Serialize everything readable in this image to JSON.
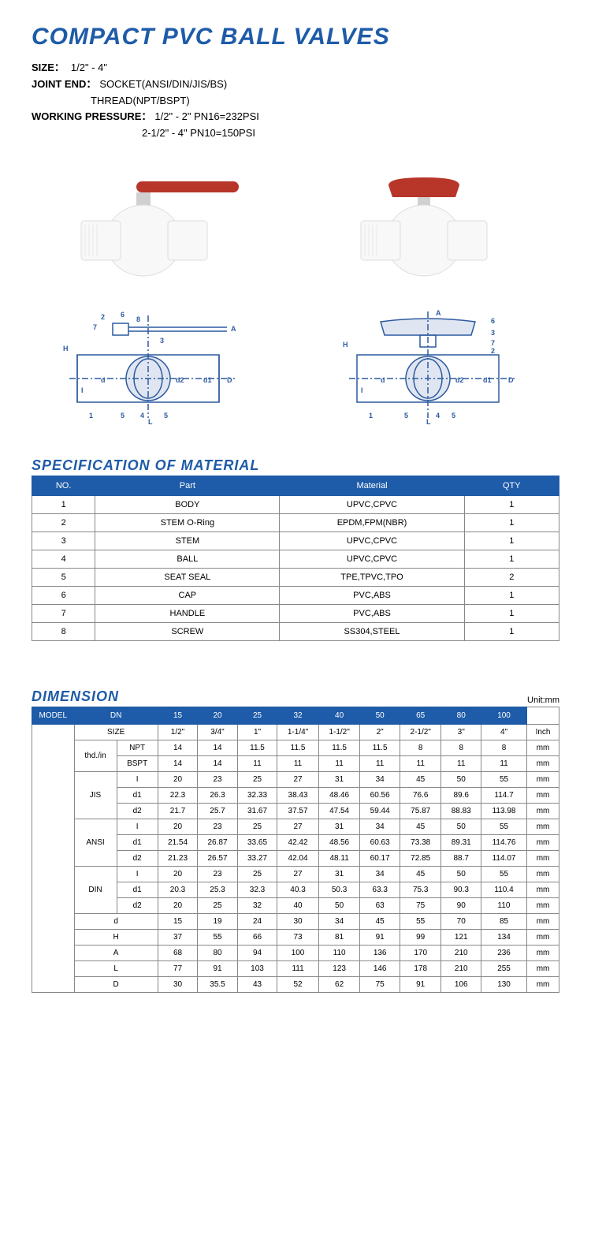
{
  "title": "COMPACT PVC BALL VALVES",
  "specs": {
    "size_label": "SIZE：",
    "size_value": "1/2\" - 4\"",
    "joint_label": "JOINT END：",
    "joint_value1": "SOCKET(ANSI/DIN/JIS/BS)",
    "joint_value2": "THREAD(NPT/BSPT)",
    "pressure_label": "WORKING PRESSURE：",
    "pressure_value1": "1/2\" - 2\"    PN16=232PSI",
    "pressure_value2": "2-1/2\" - 4\"   PN10=150PSI"
  },
  "colors": {
    "primary": "#1e5ba8",
    "handle": "#c0392b",
    "body": "#f5f5f5",
    "diagram": "#2c5aa0"
  },
  "material": {
    "title": "SPECIFICATION OF MATERIAL",
    "headers": [
      "NO.",
      "Part",
      "Material",
      "QTY"
    ],
    "rows": [
      [
        "1",
        "BODY",
        "UPVC,CPVC",
        "1"
      ],
      [
        "2",
        "STEM O-Ring",
        "EPDM,FPM(NBR)",
        "1"
      ],
      [
        "3",
        "STEM",
        "UPVC,CPVC",
        "1"
      ],
      [
        "4",
        "BALL",
        "UPVC,CPVC",
        "1"
      ],
      [
        "5",
        "SEAT SEAL",
        "TPE,TPVC,TPO",
        "2"
      ],
      [
        "6",
        "CAP",
        "PVC,ABS",
        "1"
      ],
      [
        "7",
        "HANDLE",
        "PVC,ABS",
        "1"
      ],
      [
        "8",
        "SCREW",
        "SS304,STEEL",
        "1"
      ]
    ]
  },
  "dimension": {
    "title": "DIMENSION",
    "unit": "Unit:mm",
    "model_label": "MODEL",
    "dn_label": "DN",
    "dn_values": [
      "15",
      "20",
      "25",
      "32",
      "40",
      "50",
      "65",
      "80",
      "100"
    ],
    "size_label": "SIZE",
    "size_values": [
      "1/2\"",
      "3/4\"",
      "1\"",
      "1-1/4\"",
      "1-1/2\"",
      "2\"",
      "2-1/2\"",
      "3\"",
      "4\""
    ],
    "size_unit": "Inch",
    "groups": [
      {
        "name": "thd./in",
        "rows": [
          {
            "label": "NPT",
            "values": [
              "14",
              "14",
              "11.5",
              "11.5",
              "11.5",
              "11.5",
              "8",
              "8",
              "8"
            ],
            "unit": "mm"
          },
          {
            "label": "BSPT",
            "values": [
              "14",
              "14",
              "11",
              "11",
              "11",
              "11",
              "11",
              "11",
              "11"
            ],
            "unit": "mm"
          }
        ]
      },
      {
        "name": "JIS",
        "rows": [
          {
            "label": "I",
            "values": [
              "20",
              "23",
              "25",
              "27",
              "31",
              "34",
              "45",
              "50",
              "55"
            ],
            "unit": "mm"
          },
          {
            "label": "d1",
            "values": [
              "22.3",
              "26.3",
              "32.33",
              "38.43",
              "48.46",
              "60.56",
              "76.6",
              "89.6",
              "114.7"
            ],
            "unit": "mm"
          },
          {
            "label": "d2",
            "values": [
              "21.7",
              "25.7",
              "31.67",
              "37.57",
              "47.54",
              "59.44",
              "75.87",
              "88.83",
              "113.98"
            ],
            "unit": "mm"
          }
        ]
      },
      {
        "name": "ANSI",
        "rows": [
          {
            "label": "I",
            "values": [
              "20",
              "23",
              "25",
              "27",
              "31",
              "34",
              "45",
              "50",
              "55"
            ],
            "unit": "mm"
          },
          {
            "label": "d1",
            "values": [
              "21.54",
              "26.87",
              "33.65",
              "42.42",
              "48.56",
              "60.63",
              "73.38",
              "89.31",
              "114.76"
            ],
            "unit": "mm"
          },
          {
            "label": "d2",
            "values": [
              "21.23",
              "26.57",
              "33.27",
              "42.04",
              "48.11",
              "60.17",
              "72.85",
              "88.7",
              "114.07"
            ],
            "unit": "mm"
          }
        ]
      },
      {
        "name": "DIN",
        "rows": [
          {
            "label": "I",
            "values": [
              "20",
              "23",
              "25",
              "27",
              "31",
              "34",
              "45",
              "50",
              "55"
            ],
            "unit": "mm"
          },
          {
            "label": "d1",
            "values": [
              "20.3",
              "25.3",
              "32.3",
              "40.3",
              "50.3",
              "63.3",
              "75.3",
              "90.3",
              "110.4"
            ],
            "unit": "mm"
          },
          {
            "label": "d2",
            "values": [
              "20",
              "25",
              "32",
              "40",
              "50",
              "63",
              "75",
              "90",
              "110"
            ],
            "unit": "mm"
          }
        ]
      }
    ],
    "bottom_rows": [
      {
        "label": "d",
        "values": [
          "15",
          "19",
          "24",
          "30",
          "34",
          "45",
          "55",
          "70",
          "85"
        ],
        "unit": "mm"
      },
      {
        "label": "H",
        "values": [
          "37",
          "55",
          "66",
          "73",
          "81",
          "91",
          "99",
          "121",
          "134"
        ],
        "unit": "mm"
      },
      {
        "label": "A",
        "values": [
          "68",
          "80",
          "94",
          "100",
          "110",
          "136",
          "170",
          "210",
          "236"
        ],
        "unit": "mm"
      },
      {
        "label": "L",
        "values": [
          "77",
          "91",
          "103",
          "111",
          "123",
          "146",
          "178",
          "210",
          "255"
        ],
        "unit": "mm"
      },
      {
        "label": "D",
        "values": [
          "30",
          "35.5",
          "43",
          "52",
          "62",
          "75",
          "91",
          "106",
          "130"
        ],
        "unit": "mm"
      }
    ]
  }
}
